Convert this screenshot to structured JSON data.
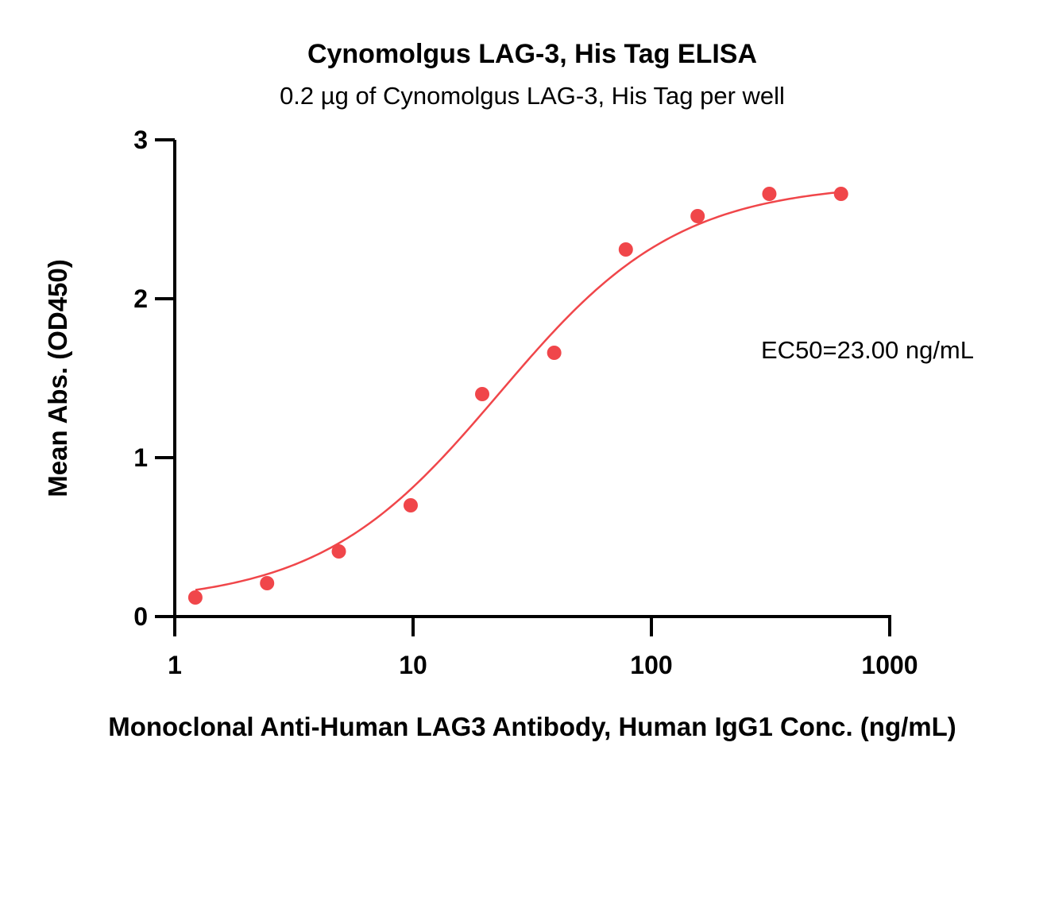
{
  "chart_data": {
    "type": "scatter",
    "title": "Cynomolgus LAG-3, His Tag ELISA",
    "subtitle": "0.2 µg of Cynomolgus LAG-3, His Tag per well",
    "xlabel": "Monoclonal Anti-Human LAG3 Antibody, Human IgG1 Conc. (ng/mL)",
    "ylabel": "Mean Abs. (OD450)",
    "xscale": "log",
    "xlim": [
      1,
      1000
    ],
    "ylim": [
      0,
      3
    ],
    "xticks": [
      1,
      10,
      100,
      1000
    ],
    "xtick_labels": [
      "1",
      "10",
      "100",
      "1000"
    ],
    "yticks": [
      0,
      1,
      2,
      3
    ],
    "ytick_labels": [
      "0",
      "1",
      "2",
      "3"
    ],
    "grid": false,
    "legend": "none",
    "annotation": "EC50=23.00 ng/mL",
    "series": [
      {
        "x": [
          1.22,
          2.44,
          4.88,
          9.77,
          19.5,
          39.1,
          78.1,
          156.3,
          312.5,
          625
        ],
        "y": [
          0.12,
          0.21,
          0.41,
          0.7,
          1.4,
          1.66,
          2.31,
          2.52,
          2.66,
          2.66
        ],
        "color": "#f0464a"
      }
    ],
    "fit": {
      "type": "4PL",
      "bottom": 0.08,
      "top": 2.73,
      "ec50": 23.0,
      "hill": 1.15,
      "color": "#f0464a"
    }
  }
}
